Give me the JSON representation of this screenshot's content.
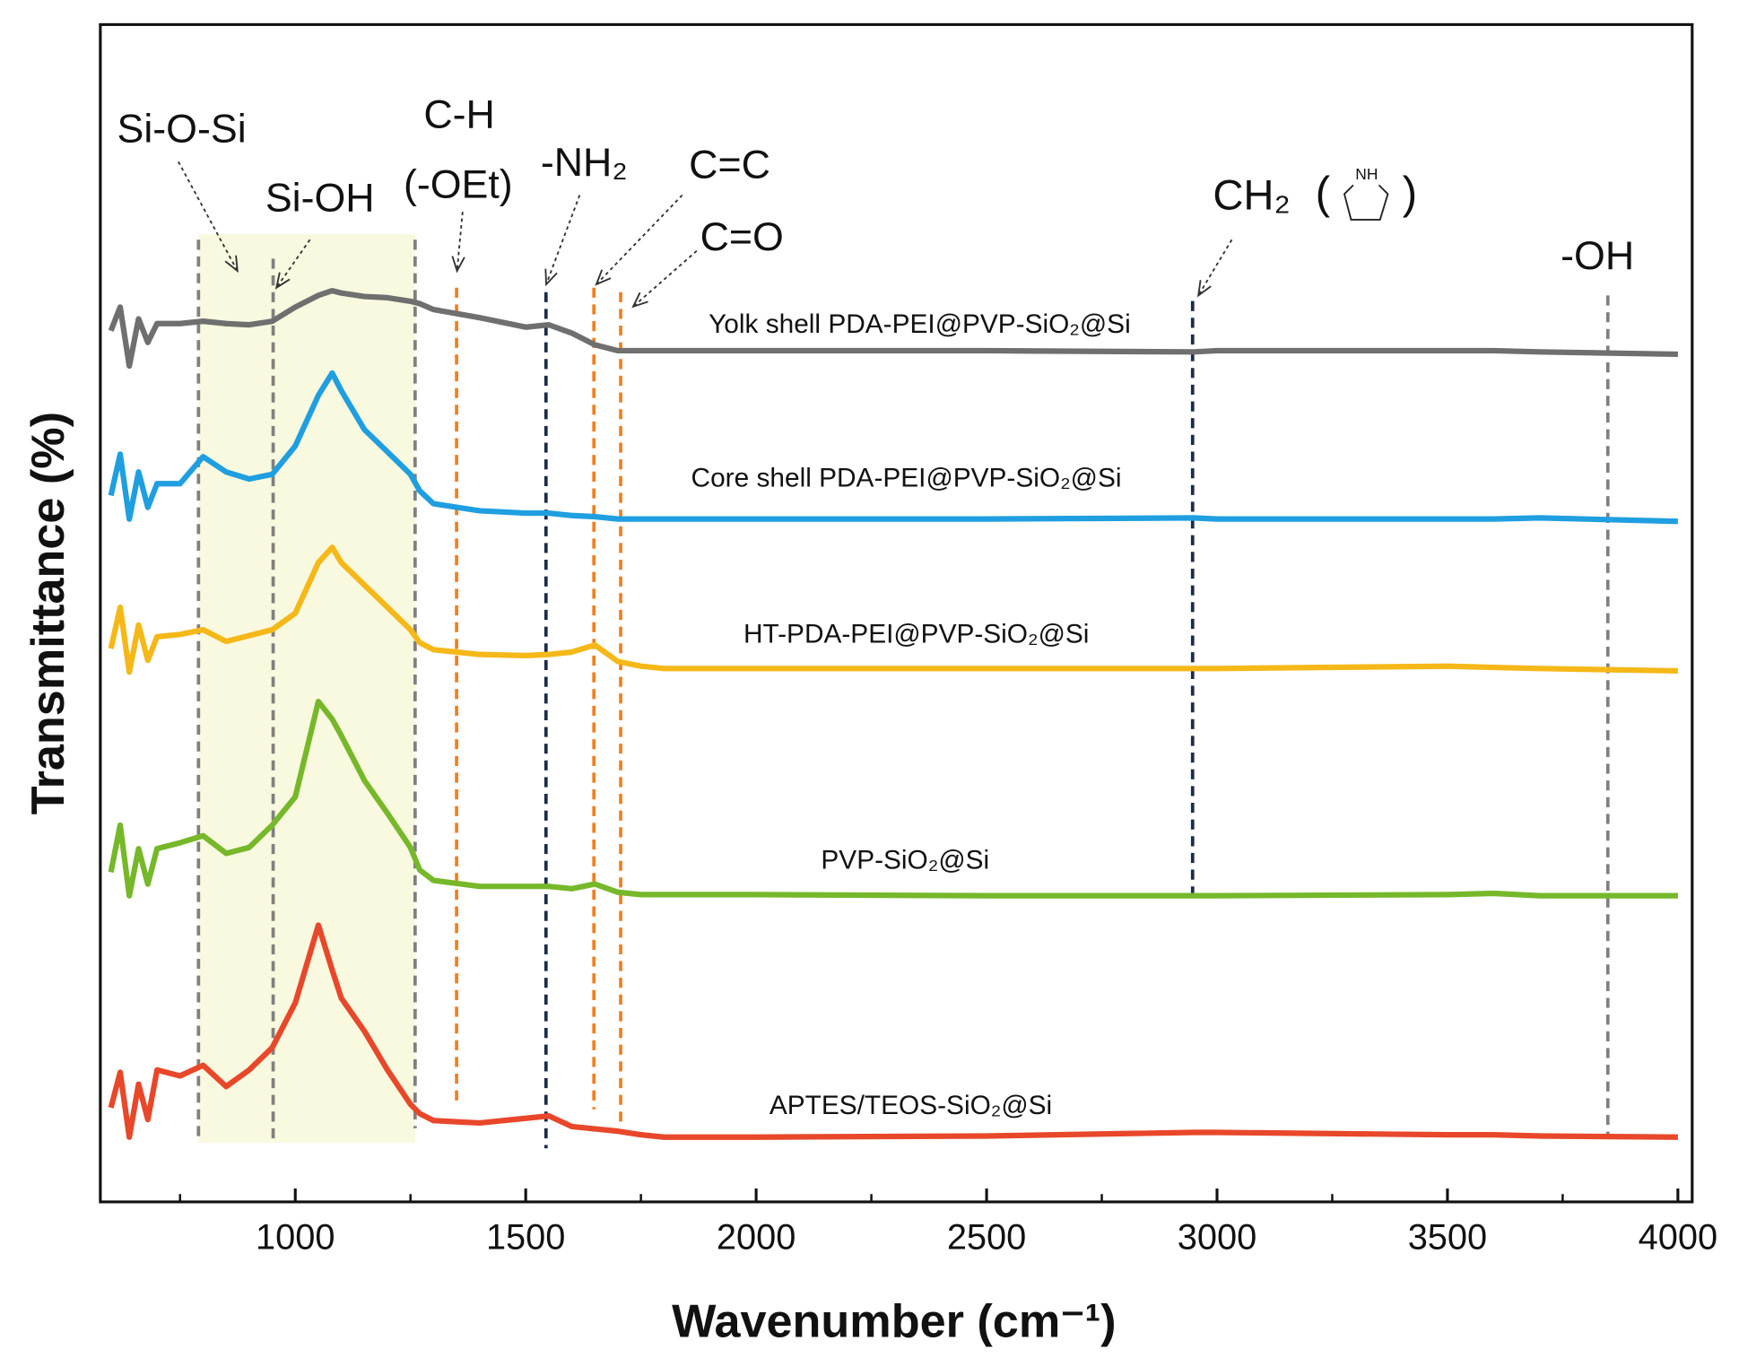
{
  "chart_data": {
    "type": "line",
    "x_label": "Wavenumber (cm⁻¹)",
    "y_label": "Transmittance (%)",
    "xlim": [
      577,
      4031
    ],
    "ylim": [
      0,
      100
    ],
    "xticks": [
      1000,
      1500,
      2000,
      2500,
      3000,
      3500,
      4000
    ],
    "xminor_ticks": [
      750,
      1250,
      1750,
      2250,
      2750,
      3250,
      3750
    ],
    "x": [
      600,
      620,
      640,
      660,
      680,
      700,
      750,
      800,
      850,
      900,
      950,
      1000,
      1050,
      1080,
      1100,
      1150,
      1200,
      1250,
      1270,
      1300,
      1400,
      1500,
      1550,
      1600,
      1650,
      1700,
      1750,
      1800,
      2000,
      2500,
      2950,
      3000,
      3500,
      3600,
      3700,
      4000
    ],
    "series": [
      {
        "name": "Yolk shell PDA-PEI@PVP-SiO₂@Si",
        "color": "#6f6f6f",
        "values": [
          74,
          76,
          71,
          75,
          73,
          74.6,
          74.6,
          74.8,
          74.6,
          74.5,
          74.8,
          76,
          77,
          77.4,
          77.2,
          76.9,
          76.8,
          76.5,
          76.3,
          75.8,
          75.1,
          74.3,
          74.5,
          73.8,
          72.8,
          72.3,
          72.3,
          72.3,
          72.3,
          72.3,
          72.2,
          72.3,
          72.3,
          72.3,
          72.2,
          72
        ]
      },
      {
        "name": "Core shell PDA-PEI@PVP-SiO₂@Si",
        "color": "#1f9fe0",
        "values": [
          60,
          63.5,
          58,
          62,
          59,
          61,
          61,
          63.3,
          62,
          61.4,
          61.8,
          64.2,
          68.5,
          70.4,
          68.9,
          65.6,
          63.7,
          61.8,
          60.4,
          59.3,
          58.7,
          58.5,
          58.5,
          58.3,
          58.2,
          58,
          58,
          58,
          58,
          58,
          58.1,
          58,
          58,
          58,
          58.1,
          57.8
        ]
      },
      {
        "name": "HT-PDA-PEI@PVP-SiO₂@Si",
        "color": "#f5b818",
        "values": [
          47,
          50.5,
          45,
          49,
          46,
          48,
          48.2,
          48.6,
          47.6,
          48.1,
          48.6,
          50,
          54.3,
          55.6,
          54.3,
          52.4,
          50.5,
          48.6,
          47.5,
          46.9,
          46.5,
          46.4,
          46.5,
          46.7,
          47.3,
          45.9,
          45.5,
          45.3,
          45.3,
          45.3,
          45.3,
          45.3,
          45.5,
          45.4,
          45.3,
          45.1
        ]
      },
      {
        "name": "PVP-SiO₂@Si",
        "color": "#76b82a",
        "values": [
          28,
          32,
          26,
          30,
          27,
          30,
          30.5,
          31.1,
          29.6,
          30.1,
          32,
          34.4,
          42.5,
          41,
          39.6,
          35.8,
          33,
          30.1,
          28.2,
          27.3,
          26.8,
          26.8,
          26.8,
          26.6,
          27,
          26.3,
          26.1,
          26.1,
          26.1,
          26,
          26,
          26,
          26.1,
          26.2,
          26,
          26
        ]
      },
      {
        "name": "APTES/TEOS-SiO₂@Si",
        "color": "#e8472a",
        "values": [
          8,
          11,
          5.5,
          10,
          7,
          11.2,
          10.7,
          11.6,
          9.8,
          11.2,
          13.1,
          16.9,
          23.5,
          19.7,
          17.3,
          14.5,
          11.2,
          8.3,
          7.5,
          6.9,
          6.7,
          7.1,
          7.3,
          6.4,
          6.2,
          6,
          5.7,
          5.5,
          5.5,
          5.6,
          5.9,
          5.9,
          5.7,
          5.7,
          5.6,
          5.5
        ]
      }
    ],
    "shaded_region": {
      "xlim": [
        790,
        1260
      ],
      "color": "#f9f9df"
    },
    "reference_lines": [
      {
        "x": 790,
        "color": "#808080"
      },
      {
        "x": 952,
        "color": "#808080"
      },
      {
        "x": 1260,
        "color": "#808080"
      },
      {
        "x": 1350,
        "color": "#f08020"
      },
      {
        "x": 1544,
        "color": "#1c2b4a"
      },
      {
        "x": 1648,
        "color": "#f08020"
      },
      {
        "x": 1706,
        "color": "#f08020"
      },
      {
        "x": 2947,
        "color": "#1c2b4a"
      },
      {
        "x": 3848,
        "color": "#808080"
      }
    ],
    "annotations": [
      "Si-O-Si",
      "Si-OH",
      "C-H",
      "(-OEt)",
      "-NH₂",
      "C=C",
      "C=O",
      "CH₂",
      "(",
      ")",
      "-OH"
    ],
    "ring_label": "NH"
  }
}
